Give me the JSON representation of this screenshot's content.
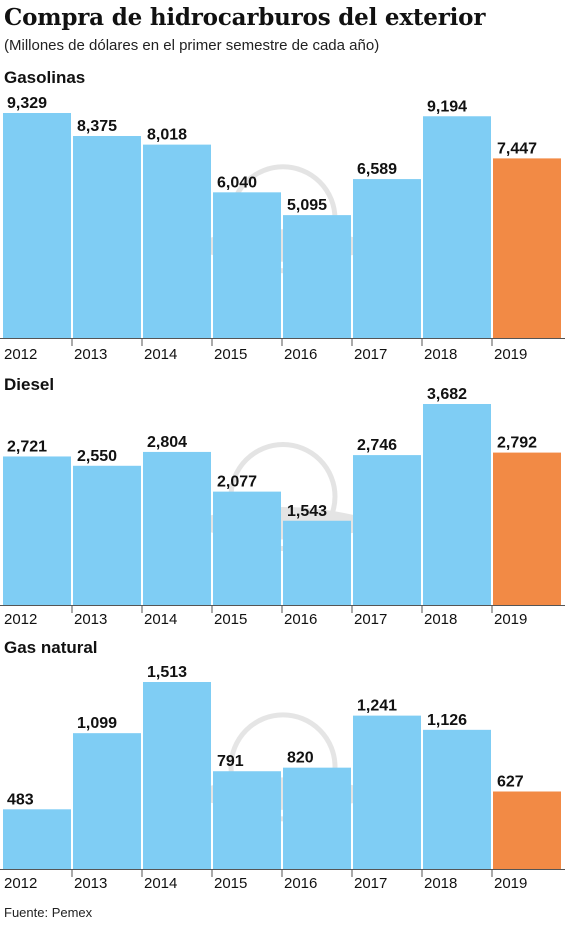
{
  "header": {
    "title": "Compra de hidrocarburos del exterior",
    "subtitle": "(Millones de dólares en el primer semestre de cada año)"
  },
  "footer": {
    "source": "Fuente: Pemex"
  },
  "colors": {
    "bar": "#7fcdf4",
    "highlight": "#f28a45",
    "axis": "#555555"
  },
  "chart_data": [
    {
      "type": "bar",
      "title": "Gasolinas",
      "categories": [
        "2012",
        "2013",
        "2014",
        "2015",
        "2016",
        "2017",
        "2018",
        "2019"
      ],
      "values": [
        9329,
        8375,
        8018,
        6040,
        5095,
        6589,
        9194,
        7447
      ],
      "labels": [
        "9,329",
        "8,375",
        "8,018",
        "6,040",
        "5,095",
        "6,589",
        "9,194",
        "7,447"
      ],
      "highlight_index": 7
    },
    {
      "type": "bar",
      "title": "Diesel",
      "categories": [
        "2012",
        "2013",
        "2014",
        "2015",
        "2016",
        "2017",
        "2018",
        "2019"
      ],
      "values": [
        2721,
        2550,
        2804,
        2077,
        1543,
        2746,
        3682,
        2792
      ],
      "labels": [
        "2,721",
        "2,550",
        "2,804",
        "2,077",
        "1,543",
        "2,746",
        "3,682",
        "2,792"
      ],
      "highlight_index": 7
    },
    {
      "type": "bar",
      "title": "Gas natural",
      "categories": [
        "2012",
        "2013",
        "2014",
        "2015",
        "2016",
        "2017",
        "2018",
        "2019"
      ],
      "values": [
        483,
        1099,
        1513,
        791,
        820,
        1241,
        1126,
        627
      ],
      "labels": [
        "483",
        "1,099",
        "1,513",
        "791",
        "820",
        "1,241",
        "1,126",
        "627"
      ],
      "highlight_index": 7
    }
  ]
}
